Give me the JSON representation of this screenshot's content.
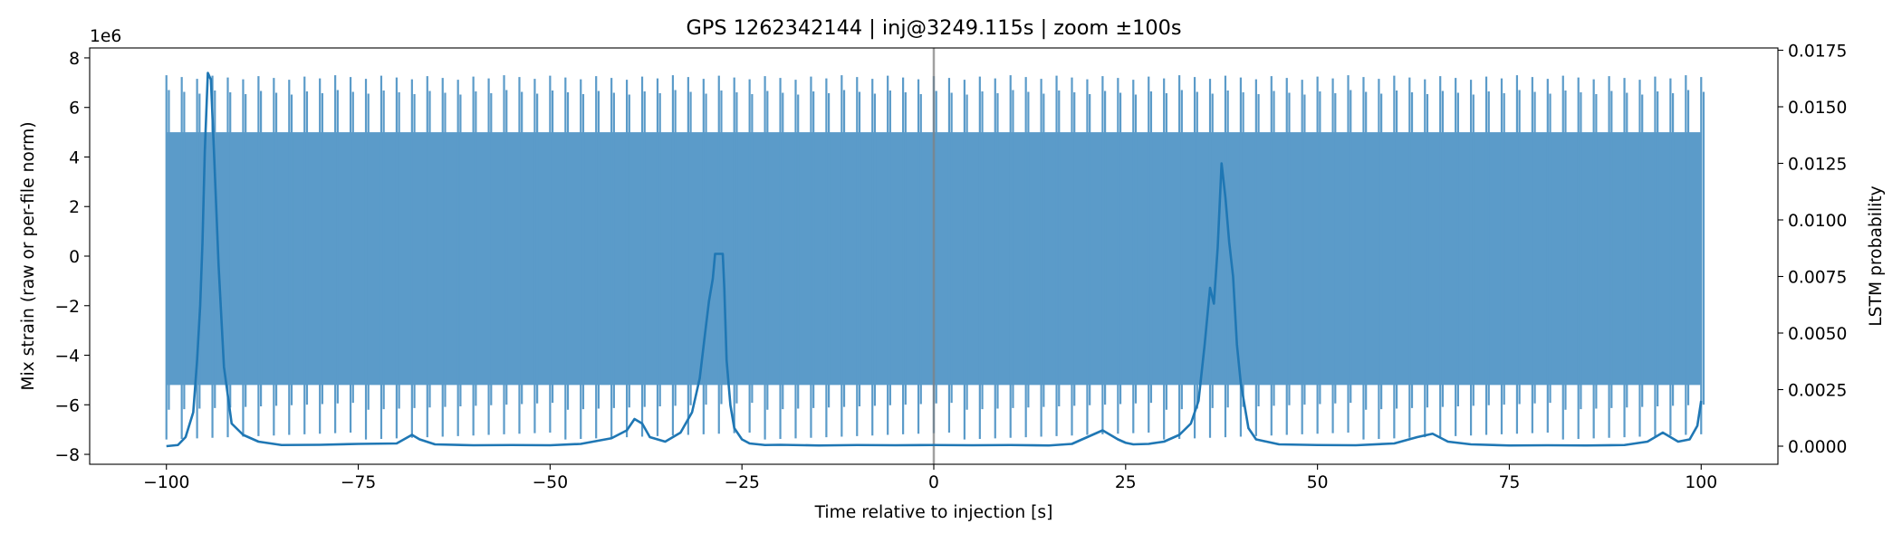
{
  "chart_data": {
    "type": "line",
    "title": "GPS 1262342144 | inj@3249.115s | zoom ±100s",
    "xlabel": "Time relative to injection [s]",
    "ylabel_left": "Mix strain (raw or per-file norm)",
    "ylabel_right": "LSTM probability",
    "left_offset_label": "1e6",
    "left_scale": 1000000,
    "xlim": [
      -110,
      110
    ],
    "ylim_left": [
      -8.4,
      8.4
    ],
    "ylim_right": [
      -0.0008,
      0.0176
    ],
    "x_ticks": [
      -100,
      -75,
      -50,
      -25,
      0,
      25,
      50,
      75,
      100
    ],
    "x_tick_labels": [
      "−100",
      "−75",
      "−50",
      "−25",
      "0",
      "25",
      "50",
      "75",
      "100"
    ],
    "y_left_ticks": [
      -8,
      -6,
      -4,
      -2,
      0,
      2,
      4,
      6,
      8
    ],
    "y_left_tick_labels": [
      "−8",
      "−6",
      "−4",
      "−2",
      "0",
      "2",
      "4",
      "6",
      "8"
    ],
    "y_right_ticks": [
      0,
      0.0025,
      0.005,
      0.0075,
      0.01,
      0.0125,
      0.015,
      0.0175
    ],
    "y_right_tick_labels": [
      "0.0000",
      "0.0025",
      "0.0050",
      "0.0075",
      "0.0100",
      "0.0125",
      "0.0150",
      "0.0175"
    ],
    "injection_marker_x": 0,
    "strain_series": {
      "name": "Mix strain",
      "color": "#5b9bc9",
      "x_range": [
        -100,
        100
      ],
      "carrier_period_s": 2,
      "envelope_max_1e6": 7.3,
      "envelope_min_1e6": -7.4,
      "dense_band_1e6": [
        -5.2,
        5.0
      ]
    },
    "lstm_series": {
      "name": "LSTM probability",
      "color": "#1f77b4",
      "x": [
        -100,
        -98.5,
        -97.5,
        -96.5,
        -96,
        -95.6,
        -95.3,
        -95,
        -94.6,
        -94.2,
        -93.8,
        -93.2,
        -92.5,
        -91.5,
        -90,
        -88,
        -85,
        -80,
        -75,
        -70,
        -68,
        -67,
        -65,
        -60,
        -55,
        -50,
        -46,
        -42,
        -40,
        -39,
        -38,
        -37,
        -35,
        -33,
        -31.5,
        -30.5,
        -29.8,
        -29.3,
        -28.8,
        -28.5,
        -28,
        -27.5,
        -27.3,
        -27,
        -26.5,
        -26,
        -25,
        -24,
        -22,
        -20,
        -15,
        -10,
        -5,
        0,
        5,
        10,
        15,
        18,
        20,
        22,
        24,
        25,
        26,
        28,
        30,
        32,
        33.5,
        34.5,
        35.3,
        36,
        36.5,
        37,
        37.5,
        38,
        38.5,
        39,
        39.5,
        40,
        41,
        42,
        45,
        50,
        55,
        60,
        63,
        65,
        67,
        70,
        75,
        80,
        85,
        90,
        93,
        95,
        97,
        98.5,
        99.5,
        100
      ],
      "y": [
        0.0,
        5e-05,
        0.0004,
        0.0015,
        0.0038,
        0.0062,
        0.009,
        0.013,
        0.0165,
        0.0162,
        0.013,
        0.008,
        0.0035,
        0.001,
        0.0005,
        0.0002,
        5e-05,
        6e-05,
        0.0001,
        0.00012,
        0.0005,
        0.0003,
        8e-05,
        4e-05,
        5e-05,
        4e-05,
        0.0001,
        0.00035,
        0.0007,
        0.0012,
        0.001,
        0.0004,
        0.0002,
        0.0006,
        0.0015,
        0.003,
        0.005,
        0.0064,
        0.0074,
        0.0085,
        0.0085,
        0.0085,
        0.007,
        0.0038,
        0.0018,
        0.0008,
        0.0003,
        0.00012,
        5e-05,
        6e-05,
        3e-05,
        5e-05,
        4e-05,
        5e-05,
        4e-05,
        5e-05,
        3e-05,
        0.0001,
        0.0004,
        0.0007,
        0.0003,
        0.00015,
        8e-05,
        0.0001,
        0.0002,
        0.0005,
        0.001,
        0.002,
        0.0045,
        0.007,
        0.0063,
        0.0088,
        0.0125,
        0.011,
        0.009,
        0.0075,
        0.0045,
        0.0028,
        0.0008,
        0.0003,
        8e-05,
        5e-05,
        4e-05,
        0.00012,
        0.0004,
        0.00055,
        0.0002,
        8e-05,
        3e-05,
        4e-05,
        3e-05,
        5e-05,
        0.0002,
        0.0006,
        0.0002,
        0.0003,
        0.0009,
        0.002
      ]
    }
  }
}
